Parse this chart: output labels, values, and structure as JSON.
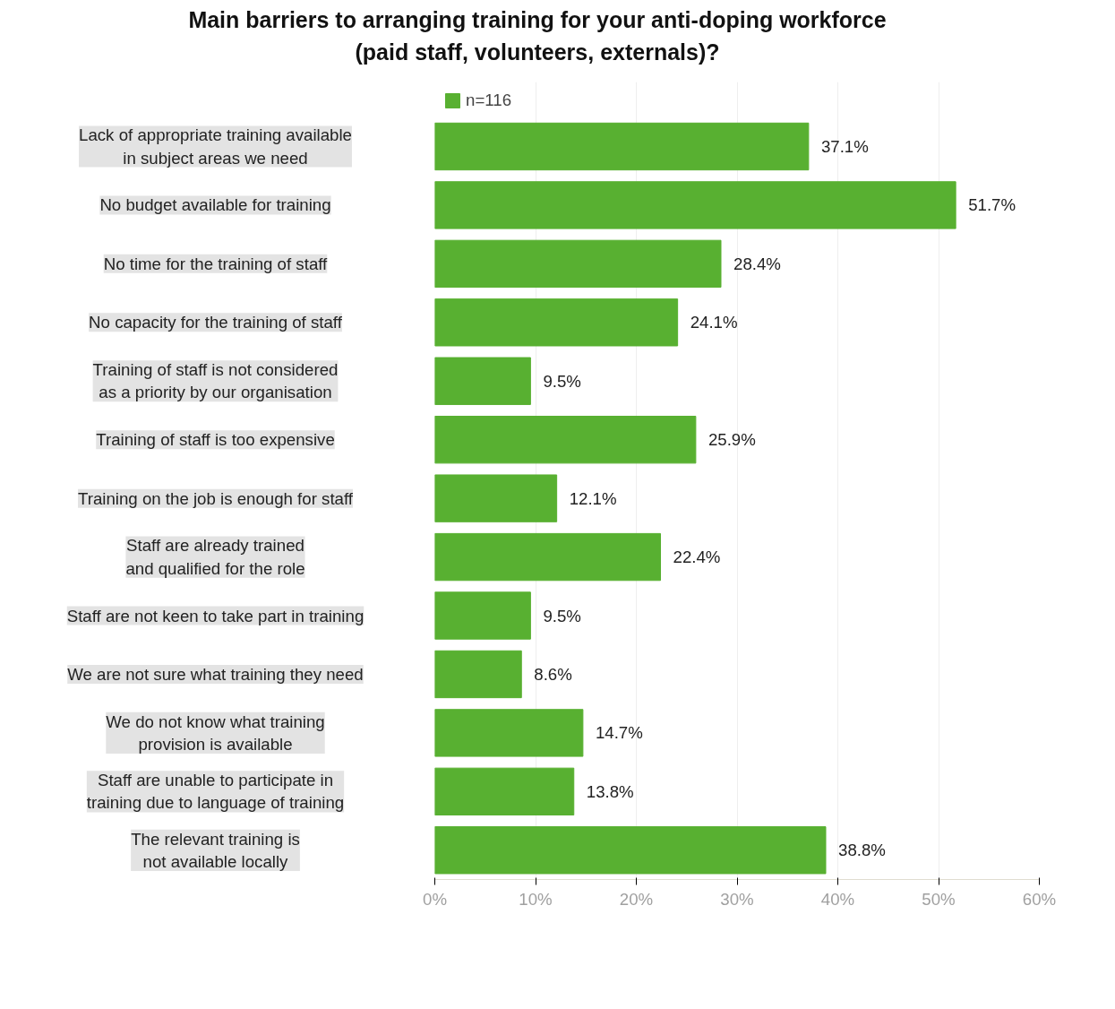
{
  "chart_data": {
    "type": "bar",
    "orientation": "horizontal",
    "title": "Main barriers to arranging training for your anti-doping workforce\n(paid staff, volunteers, externals)?",
    "categories": [
      "Lack of appropriate training available\nin subject areas we need",
      "No budget available for training",
      "No time for the training of staff",
      "No capacity for the training of staff",
      "Training of staff is not considered\nas a priority by our organisation",
      "Training of staff is too expensive",
      "Training on the job is enough for staff",
      "Staff are already trained\nand qualified for the role",
      "Staff are not keen to take part in training",
      "We are not sure what training they need",
      "We do not know what training\nprovision is available",
      "Staff are unable to participate in\ntraining due to language of training",
      "The relevant training is\nnot available locally"
    ],
    "series": [
      {
        "name": "n=116",
        "color": "#58b031",
        "values": [
          37.1,
          51.7,
          28.4,
          24.1,
          9.5,
          25.9,
          12.1,
          22.4,
          9.5,
          8.6,
          14.7,
          13.8,
          38.8
        ],
        "value_labels": [
          "37.1%",
          "51.7%",
          "28.4%",
          "24.1%",
          "9.5%",
          "25.9%",
          "12.1%",
          "22.4%",
          "9.5%",
          "8.6%",
          "14.7%",
          "13.8%",
          "38.8%"
        ]
      }
    ],
    "xlim": [
      0,
      60
    ],
    "xticks": [
      {
        "value": 0,
        "label": "0%"
      },
      {
        "value": 10,
        "label": "10%"
      },
      {
        "value": 20,
        "label": "20%"
      },
      {
        "value": 30,
        "label": "30%"
      },
      {
        "value": 40,
        "label": "40%"
      },
      {
        "value": 50,
        "label": "50%"
      },
      {
        "value": 60,
        "label": "60%"
      }
    ],
    "grid": "x",
    "legend": "top"
  }
}
